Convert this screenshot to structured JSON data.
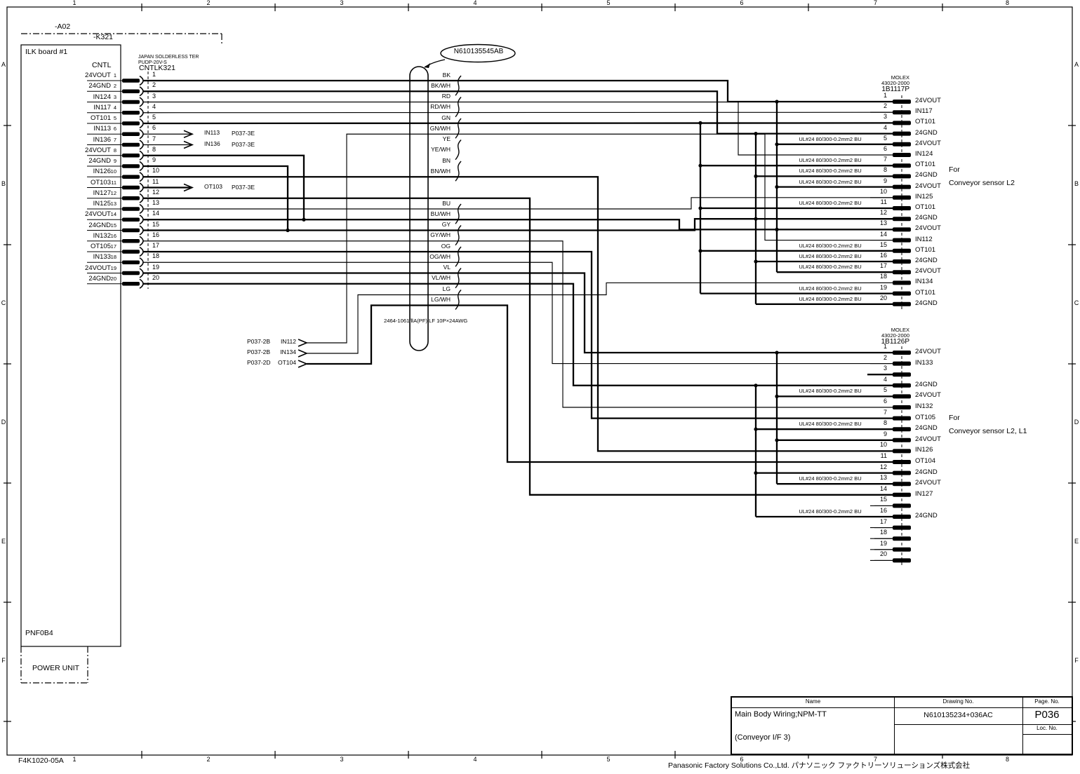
{
  "grid": {
    "cols": [
      "1",
      "2",
      "3",
      "4",
      "5",
      "6",
      "7",
      "8"
    ],
    "rows": [
      "A",
      "B",
      "C",
      "D",
      "E",
      "F"
    ]
  },
  "footer": {
    "company": "Panasonic Factory Solutions Co.,Ltd. パナソニック ファクトリーソリューションズ株式会社",
    "form_no": "F4K1020-05A"
  },
  "title_block": {
    "name_label": "Name",
    "drawing_label": "Drawing No.",
    "page_label": "Page. No.",
    "loc_label": "Loc. No.",
    "name_line1": "Main Body Wiring;NPM-TT",
    "name_line2": "(Conveyor I/F 3)",
    "drawing_no": "N610135234+036AC",
    "page_no": "P036"
  },
  "left": {
    "ref_a": "-A02",
    "ref_k": "-K321",
    "board": "ILK board #1",
    "conn_label": "CNTL",
    "maker_line1": "JAPAN SOLDERLESS TER",
    "maker_line2": "PUDP-20V-S",
    "conn_name": "CNTLK321",
    "power_board": "PNF0B4",
    "power_unit": "POWER UNIT",
    "pins": [
      {
        "n": "1",
        "signal": "24VOUT"
      },
      {
        "n": "2",
        "signal": "24GND"
      },
      {
        "n": "3",
        "signal": "IN124"
      },
      {
        "n": "4",
        "signal": "IN117"
      },
      {
        "n": "5",
        "signal": "OT101"
      },
      {
        "n": "6",
        "signal": "IN113"
      },
      {
        "n": "7",
        "signal": "IN136"
      },
      {
        "n": "8",
        "signal": "24VOUT"
      },
      {
        "n": "9",
        "signal": "24GND"
      },
      {
        "n": "10",
        "signal": "IN126"
      },
      {
        "n": "11",
        "signal": "OT103"
      },
      {
        "n": "12",
        "signal": "IN127"
      },
      {
        "n": "13",
        "signal": "IN125"
      },
      {
        "n": "14",
        "signal": "24VOUT"
      },
      {
        "n": "15",
        "signal": "24GND"
      },
      {
        "n": "16",
        "signal": "IN132"
      },
      {
        "n": "17",
        "signal": "OT105"
      },
      {
        "n": "18",
        "signal": "IN133"
      },
      {
        "n": "19",
        "signal": "24VOUT"
      },
      {
        "n": "20",
        "signal": "24GND"
      }
    ]
  },
  "cable": {
    "callout": "N610135545AB",
    "spec": "2464-1061/ⅡA(PF) LF 10P×24AWG",
    "colors": [
      "BK",
      "BK/WH",
      "RD",
      "RD/WH",
      "GN",
      "GN/WH",
      "YE",
      "YE/WH",
      "BN",
      "BN/WH",
      "BU",
      "BU/WH",
      "GY",
      "GY/WH",
      "OG",
      "OG/WH",
      "VL",
      "VL/WH",
      "LG",
      "LG/WH"
    ]
  },
  "branch_out": [
    {
      "signal": "IN113",
      "dest": "P037-3E"
    },
    {
      "signal": "IN136",
      "dest": "P037-3E"
    },
    {
      "signal": "OT103",
      "dest": "P037-3E"
    }
  ],
  "branch_in": [
    {
      "src": "P037-2B",
      "signal": "IN112"
    },
    {
      "src": "P037-2B",
      "signal": "IN134"
    },
    {
      "src": "P037-2D",
      "signal": "OT104"
    }
  ],
  "wire_note": "UL#24 80/300-0.2mm2 BU",
  "connectors": [
    {
      "maker": "MOLEX",
      "part": "43020-2000",
      "name": "1B1117P",
      "note_line1": "For",
      "note_line2": "Conveyor sensor L2",
      "pins": [
        {
          "n": "1",
          "signal": "24VOUT"
        },
        {
          "n": "2",
          "signal": "IN117"
        },
        {
          "n": "3",
          "signal": "OT101"
        },
        {
          "n": "4",
          "signal": "24GND"
        },
        {
          "n": "5",
          "signal": "24VOUT",
          "ul": true
        },
        {
          "n": "6",
          "signal": "IN124"
        },
        {
          "n": "7",
          "signal": "OT101",
          "ul": true
        },
        {
          "n": "8",
          "signal": "24GND",
          "ul": true
        },
        {
          "n": "9",
          "signal": "24VOUT",
          "ul": true
        },
        {
          "n": "10",
          "signal": "IN125"
        },
        {
          "n": "11",
          "signal": "OT101",
          "ul": true
        },
        {
          "n": "12",
          "signal": "24GND"
        },
        {
          "n": "13",
          "signal": "24VOUT"
        },
        {
          "n": "14",
          "signal": "IN112"
        },
        {
          "n": "15",
          "signal": "OT101",
          "ul": true
        },
        {
          "n": "16",
          "signal": "24GND",
          "ul": true
        },
        {
          "n": "17",
          "signal": "24VOUT",
          "ul": true
        },
        {
          "n": "18",
          "signal": "IN134"
        },
        {
          "n": "19",
          "signal": "OT101",
          "ul": true
        },
        {
          "n": "20",
          "signal": "24GND",
          "ul": true
        }
      ]
    },
    {
      "maker": "MOLEX",
      "part": "43020-2000",
      "name": "1B1126P",
      "note_line1": "For",
      "note_line2": "Conveyor sensor L2, L1",
      "pins": [
        {
          "n": "1",
          "signal": "24VOUT"
        },
        {
          "n": "2",
          "signal": "IN133"
        },
        {
          "n": "3",
          "signal": ""
        },
        {
          "n": "4",
          "signal": "24GND"
        },
        {
          "n": "5",
          "signal": "24VOUT",
          "ul": true
        },
        {
          "n": "6",
          "signal": "IN132"
        },
        {
          "n": "7",
          "signal": "OT105"
        },
        {
          "n": "8",
          "signal": "24GND",
          "ul": true
        },
        {
          "n": "9",
          "signal": "24VOUT"
        },
        {
          "n": "10",
          "signal": "IN126"
        },
        {
          "n": "11",
          "signal": "OT104"
        },
        {
          "n": "12",
          "signal": "24GND"
        },
        {
          "n": "13",
          "signal": "24VOUT",
          "ul": true
        },
        {
          "n": "14",
          "signal": "IN127"
        },
        {
          "n": "15",
          "signal": ""
        },
        {
          "n": "16",
          "signal": "24GND",
          "ul": true
        },
        {
          "n": "17",
          "signal": ""
        },
        {
          "n": "18",
          "signal": ""
        },
        {
          "n": "19",
          "signal": ""
        },
        {
          "n": "20",
          "signal": ""
        }
      ]
    }
  ]
}
